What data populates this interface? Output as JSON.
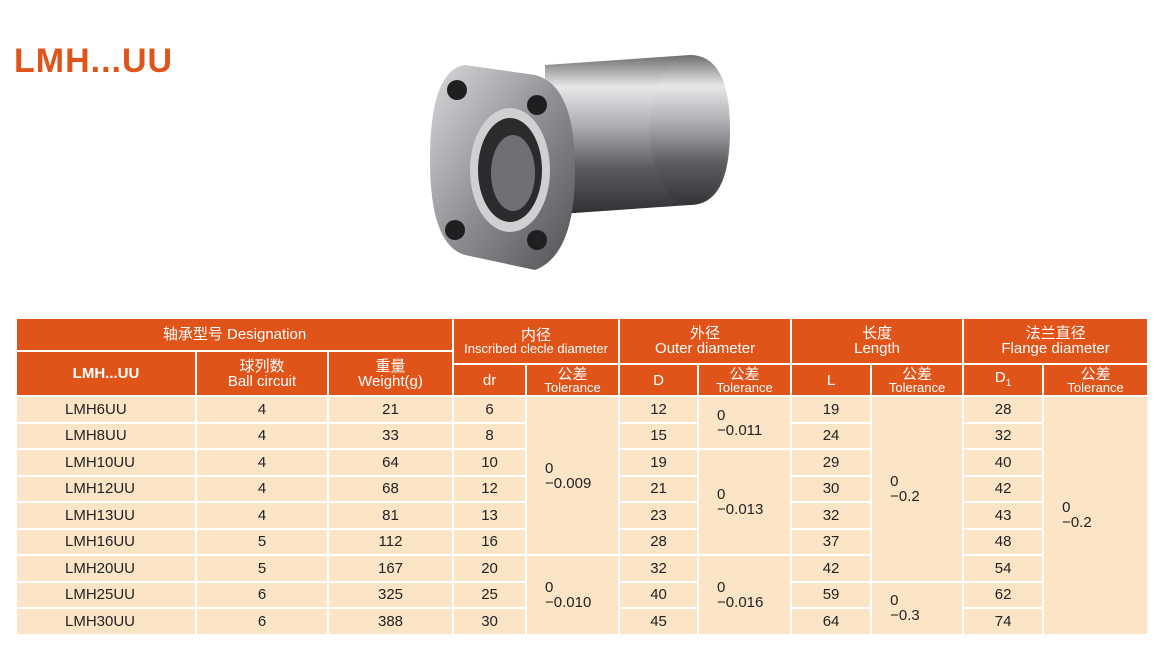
{
  "title": "LMH...UU",
  "colors": {
    "header": "#e0541a",
    "body": "#fce5c6",
    "title": "#e0541a"
  },
  "headers": {
    "designation": "轴承型号  Designation",
    "model": "LMH...UU",
    "ball_zh": "球列数",
    "ball_en": "Ball circuit",
    "weight_zh": "重量",
    "weight_en": "Weight(g)",
    "inner_zh": "内径",
    "inner_en": "Inscribed clecle diameter",
    "outer_zh": "外径",
    "outer_en": "Outer diameter",
    "length_zh": "长度",
    "length_en": "Length",
    "flange_zh": "法兰直径",
    "flange_en": "Flange diameter",
    "dr": "dr",
    "D": "D",
    "L": "L",
    "D1": "D",
    "D1_sub": "1",
    "tol_zh": "公差",
    "tol_en": "Tolerance"
  },
  "rows": [
    {
      "model": "LMH6UU",
      "balls": "4",
      "weight": "21",
      "dr": "6",
      "D": "12",
      "L": "19",
      "D1": "28"
    },
    {
      "model": "LMH8UU",
      "balls": "4",
      "weight": "33",
      "dr": "8",
      "D": "15",
      "L": "24",
      "D1": "32"
    },
    {
      "model": "LMH10UU",
      "balls": "4",
      "weight": "64",
      "dr": "10",
      "D": "19",
      "L": "29",
      "D1": "40"
    },
    {
      "model": "LMH12UU",
      "balls": "4",
      "weight": "68",
      "dr": "12",
      "D": "21",
      "L": "30",
      "D1": "42"
    },
    {
      "model": "LMH13UU",
      "balls": "4",
      "weight": "81",
      "dr": "13",
      "D": "23",
      "L": "32",
      "D1": "43"
    },
    {
      "model": "LMH16UU",
      "balls": "5",
      "weight": "112",
      "dr": "16",
      "D": "28",
      "L": "37",
      "D1": "48"
    },
    {
      "model": "LMH20UU",
      "balls": "5",
      "weight": "167",
      "dr": "20",
      "D": "32",
      "L": "42",
      "D1": "54"
    },
    {
      "model": "LMH25UU",
      "balls": "6",
      "weight": "325",
      "dr": "25",
      "D": "40",
      "L": "59",
      "D1": "62"
    },
    {
      "model": "LMH30UU",
      "balls": "6",
      "weight": "388",
      "dr": "30",
      "D": "45",
      "L": "64",
      "D1": "74"
    }
  ],
  "tolerances": {
    "dr_a": "0\n−0.009",
    "dr_b": "0\n−0.010",
    "D_a": "0\n−0.011",
    "D_b": "0\n−0.013",
    "D_c": "0\n−0.016",
    "L_a": "0\n−0.2",
    "L_b": "0\n−0.3",
    "D1": "0\n−0.2"
  }
}
